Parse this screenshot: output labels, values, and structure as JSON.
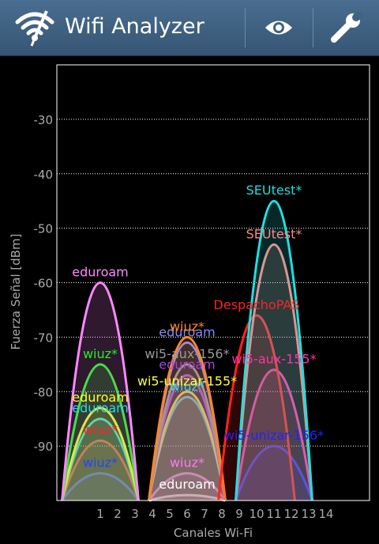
{
  "app": {
    "title": "Wifi Analyzer",
    "icon": "wifi-antenna-icon",
    "actions": [
      {
        "name": "view-button",
        "icon": "eye-icon"
      },
      {
        "name": "tools-button",
        "icon": "wrench-icon"
      }
    ]
  },
  "colors": {
    "actionbar": "#3f6384",
    "background": "#000000",
    "plot_border": "#ffffff",
    "grid": "#ffffff",
    "axis_text": "#aaaaaa"
  },
  "chart_data": {
    "type": "area",
    "xlabel": "Canales Wi-Fi",
    "ylabel": "Fuerza Señal [dBm]",
    "x_ticks": [
      1,
      2,
      3,
      4,
      5,
      6,
      7,
      8,
      9,
      10,
      11,
      12,
      13,
      14
    ],
    "y_ticks": [
      -30,
      -40,
      -50,
      -60,
      -70,
      -80,
      -90
    ],
    "xlim": [
      -1.5,
      16.5
    ],
    "ylim": [
      -100,
      -20
    ],
    "grid": true,
    "series": [
      {
        "name": "eduroam",
        "channel": 1,
        "dbm": -60,
        "color": "#ff88ff"
      },
      {
        "name": "wiuz*",
        "channel": 1,
        "dbm": -75,
        "color": "#22ee22"
      },
      {
        "name": "eduroam",
        "channel": 1,
        "dbm": -83,
        "color": "#ffff22"
      },
      {
        "name": "eduroam",
        "channel": 1,
        "dbm": -85,
        "color": "#22dddd"
      },
      {
        "name": "wiuz*",
        "channel": 1,
        "dbm": -89,
        "color": "#ff2222"
      },
      {
        "name": "wiuz*",
        "channel": 1,
        "dbm": -95,
        "color": "#2244ff"
      },
      {
        "name": "wiuz*",
        "channel": 6,
        "dbm": -70,
        "color": "#ff8822"
      },
      {
        "name": "eduroam",
        "channel": 6,
        "dbm": -71,
        "color": "#8888ff"
      },
      {
        "name": "wi5-aux-156*",
        "channel": 6,
        "dbm": -75,
        "color": "#999999"
      },
      {
        "name": "eduroam",
        "channel": 6,
        "dbm": -77,
        "color": "#aa44dd"
      },
      {
        "name": "wi5-unizar-155*",
        "channel": 6,
        "dbm": -80,
        "color": "#ffff33"
      },
      {
        "name": "wiuz*",
        "channel": 6,
        "dbm": -81,
        "color": "#33dddd"
      },
      {
        "name": "wiuz*",
        "channel": 6,
        "dbm": -95,
        "color": "#ff77ff"
      },
      {
        "name": "eduroam",
        "channel": 6,
        "dbm": -99,
        "color": "#ffffff"
      },
      {
        "name": "SEUtest*",
        "channel": 11,
        "dbm": -45,
        "color": "#22dddd"
      },
      {
        "name": "SEUtest*",
        "channel": 11,
        "dbm": -53,
        "color": "#ff8888"
      },
      {
        "name": "DespachoPAS",
        "channel": 10,
        "dbm": -66,
        "color": "#ff2222"
      },
      {
        "name": "wi5-aux-155*",
        "channel": 11,
        "dbm": -76,
        "color": "#ff33aa"
      },
      {
        "name": "wi5-unizar-156*",
        "channel": 11,
        "dbm": -90,
        "color": "#2222ff"
      }
    ]
  }
}
